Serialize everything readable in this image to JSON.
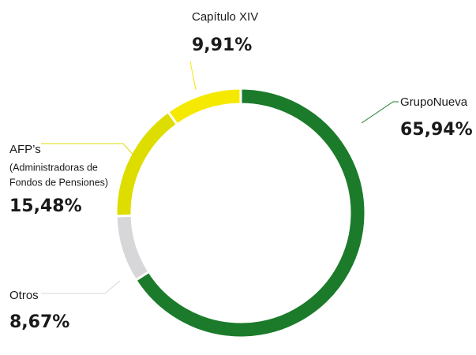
{
  "chart_data": {
    "type": "donut",
    "categories": [
      "GrupoNueva",
      "Otros",
      "AFP’s",
      "Capítulo XIV"
    ],
    "values": [
      65.94,
      8.67,
      15.48,
      9.91
    ],
    "value_labels": [
      "65,94%",
      "8,67%",
      "15,48%",
      "9,91%"
    ],
    "colors": [
      "#1b7b2b",
      "#d7d7d9",
      "#dedd00",
      "#f6e900"
    ],
    "annotations": [
      "(Administradoras de",
      "Fondos de Pensiones)"
    ]
  }
}
